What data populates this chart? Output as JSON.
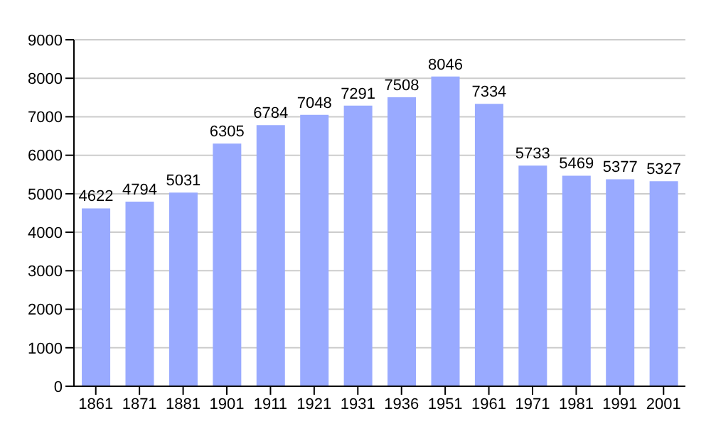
{
  "chart_data": {
    "type": "bar",
    "categories": [
      "1861",
      "1871",
      "1881",
      "1901",
      "1911",
      "1921",
      "1931",
      "1936",
      "1951",
      "1961",
      "1971",
      "1981",
      "1991",
      "2001"
    ],
    "values": [
      4622,
      4794,
      5031,
      6305,
      6784,
      7048,
      7291,
      7508,
      8046,
      7334,
      5733,
      5469,
      5377,
      5327
    ],
    "color": "#99aaff",
    "ylim": [
      0,
      9000
    ],
    "yticks": [
      0,
      1000,
      2000,
      3000,
      4000,
      5000,
      6000,
      7000,
      8000,
      9000
    ],
    "grid": "y",
    "data_labels": true
  }
}
